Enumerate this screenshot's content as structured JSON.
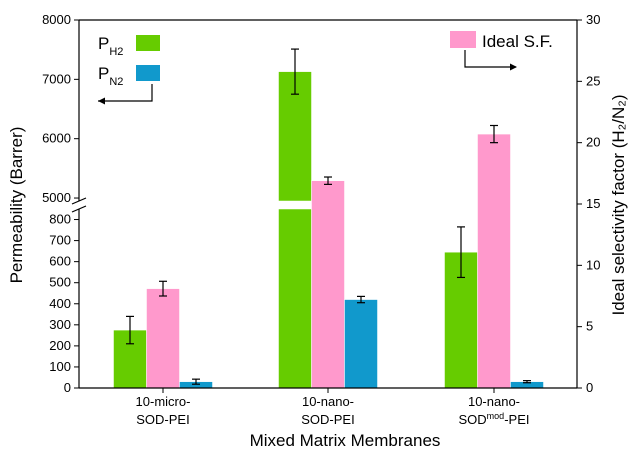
{
  "chart_data": {
    "type": "bar",
    "xlabel": "Mixed Matrix Membranes",
    "ylabel_left": "Permeability (Barrer)",
    "ylabel_right": "Ideal selectivity factor (H₂/N₂)",
    "categories": [
      {
        "line1": "10-micro-",
        "line2": "SOD-PEI",
        "line2_pre": "",
        "line2_sup": "",
        "line2_post": ""
      },
      {
        "line1": "10-nano-",
        "line2": "SOD-PEI",
        "line2_pre": "",
        "line2_sup": "",
        "line2_post": ""
      },
      {
        "line1": "10-nano-",
        "line2": "",
        "line2_pre": "SOD",
        "line2_sup": "mod",
        "line2_post": "-PEI"
      }
    ],
    "left_axis": {
      "broken": true,
      "lower_range": [
        0,
        850
      ],
      "upper_range": [
        4950,
        8000
      ],
      "lower_ticks": [
        0,
        100,
        200,
        300,
        400,
        500,
        600,
        700,
        800
      ],
      "upper_ticks": [
        5000,
        6000,
        7000,
        8000
      ]
    },
    "right_axis": {
      "range": [
        0,
        30
      ],
      "ticks": [
        0,
        5,
        10,
        15,
        20,
        25,
        30
      ]
    },
    "series": [
      {
        "name": "P_H2",
        "legend_main": "P",
        "legend_sub": "H2",
        "axis": "left",
        "color": "#66cc00",
        "values": [
          275,
          7130,
          645
        ],
        "errors": [
          65,
          380,
          120
        ]
      },
      {
        "name": "Ideal S.F.",
        "legend_main": "Ideal S.F.",
        "legend_sub": "",
        "axis": "right",
        "color": "#ff99cc",
        "values": [
          8.1,
          16.9,
          20.7
        ],
        "errors": [
          0.6,
          0.3,
          0.7
        ]
      },
      {
        "name": "P_N2",
        "legend_main": "P",
        "legend_sub": "N2",
        "axis": "left",
        "color": "#1199cc",
        "values": [
          30,
          420,
          30
        ],
        "errors": [
          12,
          15,
          5
        ]
      }
    ],
    "legend": {
      "left_series": [
        "P_H2",
        "P_N2"
      ],
      "left_arrow": "left",
      "right_series": [
        "Ideal S.F."
      ],
      "right_arrow": "right"
    },
    "grid": false
  }
}
